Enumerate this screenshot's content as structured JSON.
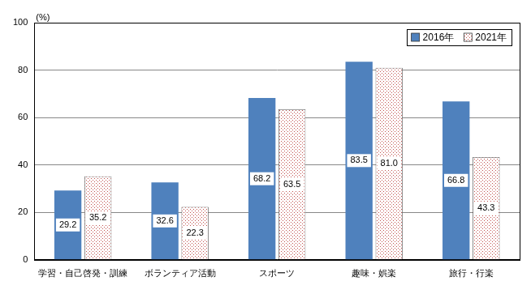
{
  "chart_data": {
    "type": "bar",
    "ylabel": "(%)",
    "categories": [
      "学習・自己啓発・訓練",
      "ボランティア活動",
      "スポーツ",
      "趣味・娯楽",
      "旅行・行楽"
    ],
    "series": [
      {
        "name": "2016年",
        "color": "#4f81bd",
        "values": [
          29.2,
          32.6,
          68.2,
          83.5,
          66.8
        ]
      },
      {
        "name": "2021年",
        "color": "#c0504d",
        "marker": "dotted",
        "values": [
          35.2,
          22.3,
          63.5,
          81.0,
          43.3
        ],
        "value_labels": [
          "35.2",
          "22.3",
          "63.5",
          "81.0",
          "43.3"
        ]
      }
    ],
    "ylim": [
      0,
      100
    ],
    "yticks": [
      0,
      20,
      40,
      60,
      80,
      100
    ],
    "grid": true,
    "legend": "upper right",
    "data_labels": true
  }
}
